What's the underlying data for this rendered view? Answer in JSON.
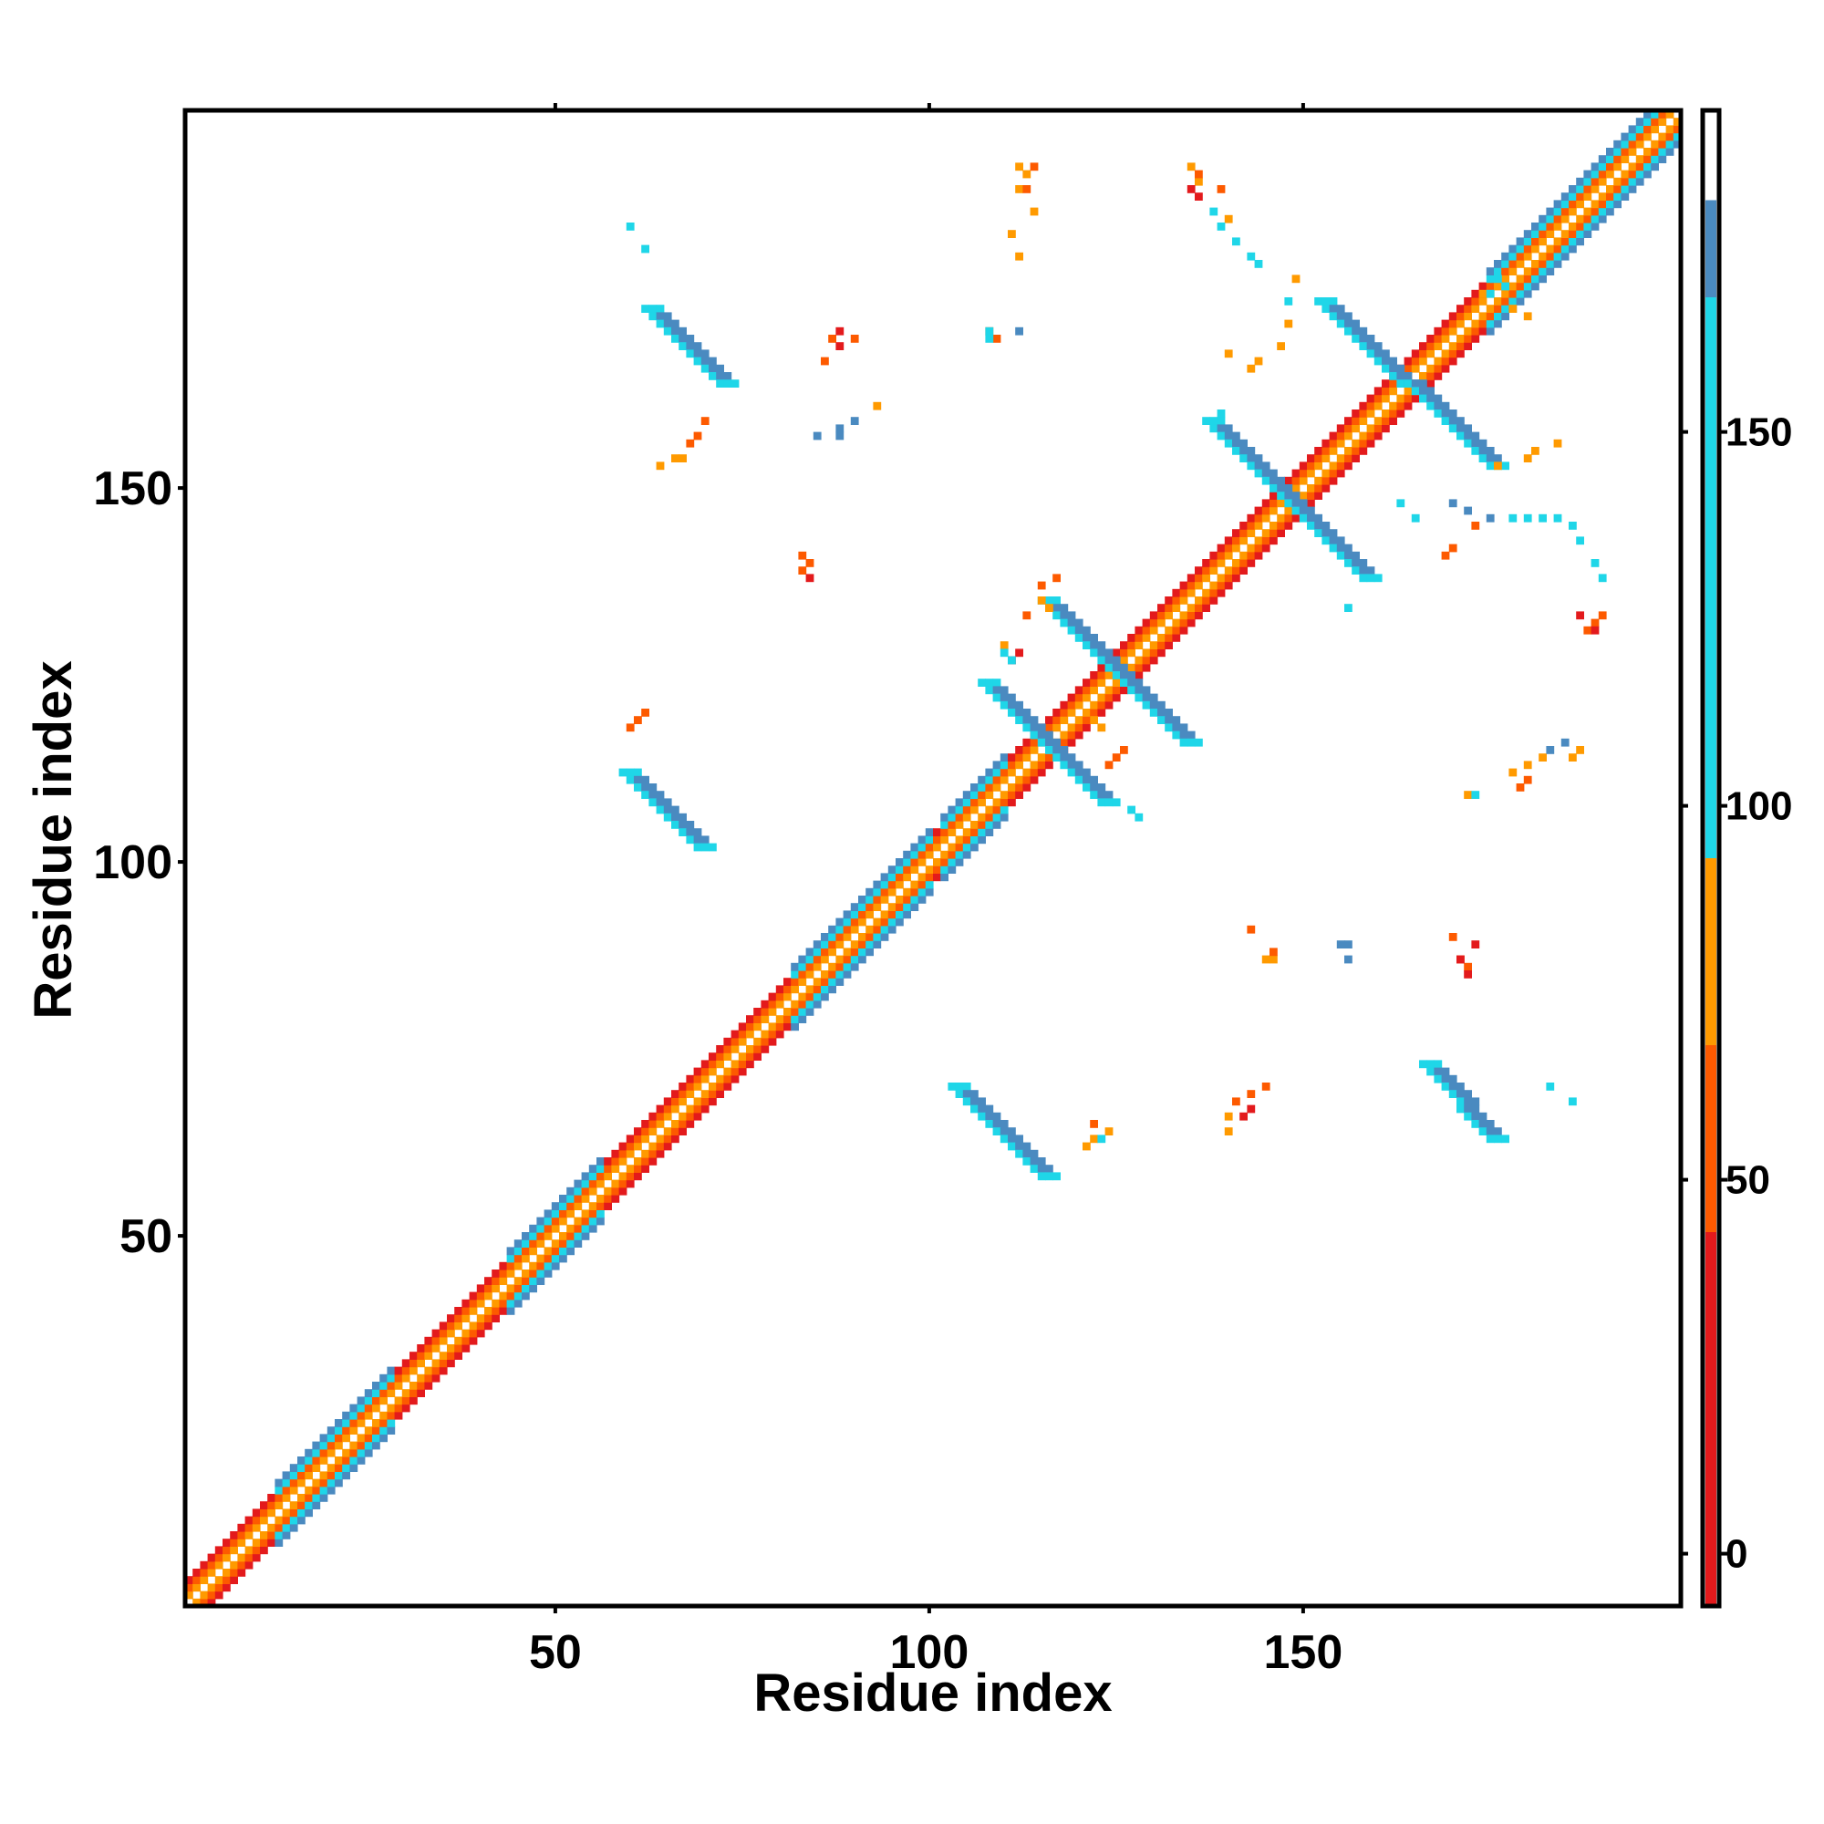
{
  "chart_data": {
    "type": "heatmap",
    "title": "",
    "xlabel": "Residue index",
    "ylabel": "Residue index",
    "xlim": [
      1,
      200
    ],
    "ylim": [
      1,
      200
    ],
    "x_ticks": [
      50,
      100,
      150
    ],
    "y_ticks": [
      50,
      100,
      150
    ],
    "grid": false,
    "colorbar": {
      "range": [
        -7,
        193
      ],
      "ticks": [
        0,
        50,
        100,
        150
      ],
      "bands": [
        {
          "from": -7,
          "to": 43,
          "color": "#e31a1c"
        },
        {
          "from": 43,
          "to": 68,
          "color": "#fd5a00"
        },
        {
          "from": 68,
          "to": 93,
          "color": "#ff9a00"
        },
        {
          "from": 93,
          "to": 168,
          "color": "#1fd6e8"
        },
        {
          "from": 168,
          "to": 181,
          "color": "#4a8ac0"
        },
        {
          "from": 181,
          "to": 193,
          "color": "#ffffff"
        }
      ]
    },
    "diagonal": {
      "from": 1,
      "to": 200,
      "width": 4,
      "colors": [
        "#ffffff",
        "#ff9a00",
        "#fd5a00",
        "#e31a1c"
      ],
      "helix_segments": [
        [
          13,
          28
        ],
        [
          44,
          56
        ],
        [
          82,
          100
        ],
        [
          102,
          110
        ],
        [
          175,
          200
        ]
      ]
    },
    "features": [
      {
        "kind": "antiparallel_strip",
        "x": [
          60,
          70
        ],
        "y": [
          112,
          102
        ],
        "color": "#4a8ac0",
        "edge_color": "#1fd6e8",
        "width": 3
      },
      {
        "kind": "antiparallel_strip",
        "x": [
          63,
          73
        ],
        "y": [
          174,
          164
        ],
        "color": "#4a8ac0",
        "edge_color": "#1fd6e8",
        "width": 3
      },
      {
        "kind": "antiparallel_strip",
        "x": [
          104,
          116
        ],
        "y": [
          70,
          58
        ],
        "color": "#4a8ac0",
        "edge_color": "#1fd6e8",
        "width": 3
      },
      {
        "kind": "antiparallel_strip",
        "x": [
          167,
          176
        ],
        "y": [
          73,
          63
        ],
        "color": "#4a8ac0",
        "edge_color": "#1fd6e8",
        "width": 3
      },
      {
        "kind": "antiparallel_strip",
        "x": [
          108,
          124
        ],
        "y": [
          124,
          108
        ],
        "color": "#4a8ac0",
        "edge_color": "#1fd6e8",
        "width": 3
      },
      {
        "kind": "antiparallel_strip",
        "x": [
          116,
          135
        ],
        "y": [
          135,
          116
        ],
        "color": "#4a8ac0",
        "edge_color": "#1fd6e8",
        "width": 3
      },
      {
        "kind": "antiparallel_strip",
        "x": [
          138,
          159
        ],
        "y": [
          159,
          138
        ],
        "color": "#4a8ac0",
        "edge_color": "#1fd6e8",
        "width": 3
      },
      {
        "kind": "antiparallel_strip",
        "x": [
          153,
          176
        ],
        "y": [
          175,
          153
        ],
        "color": "#4a8ac0",
        "edge_color": "#1fd6e8",
        "width": 3
      },
      {
        "kind": "scatter",
        "color": "#ff9a00",
        "cells": [
          [
            112,
            193
          ],
          [
            113,
            192
          ],
          [
            112,
            190
          ],
          [
            114,
            187
          ],
          [
            111,
            184
          ],
          [
            112,
            181
          ],
          [
            135,
            193
          ],
          [
            136,
            191
          ],
          [
            140,
            186
          ],
          [
            149,
            178
          ],
          [
            148,
            172
          ],
          [
            147,
            169
          ],
          [
            140,
            168
          ],
          [
            143,
            166
          ],
          [
            144,
            167
          ],
          [
            66,
            154
          ],
          [
            67,
            154
          ],
          [
            64,
            153
          ],
          [
            115,
            135
          ],
          [
            116,
            134
          ],
          [
            110,
            129
          ],
          [
            122,
            119
          ],
          [
            123,
            118
          ],
          [
            181,
            155
          ],
          [
            184,
            156
          ],
          [
            180,
            154
          ],
          [
            176,
            153
          ],
          [
            146,
            87
          ],
          [
            145,
            87
          ],
          [
            140,
            64
          ],
          [
            140,
            66
          ],
          [
            178,
            112
          ],
          [
            180,
            113
          ],
          [
            182,
            114
          ],
          [
            186,
            114
          ],
          [
            187,
            115
          ],
          [
            172,
            109
          ],
          [
            122,
            63
          ],
          [
            124,
            64
          ],
          [
            121,
            62
          ],
          [
            93,
            161
          ],
          [
            178,
            174
          ],
          [
            180,
            173
          ],
          [
            174,
            176
          ]
        ]
      },
      {
        "kind": "scatter",
        "color": "#fd5a00",
        "cells": [
          [
            113,
            190
          ],
          [
            114,
            193
          ],
          [
            136,
            192
          ],
          [
            139,
            190
          ],
          [
            68,
            156
          ],
          [
            69,
            157
          ],
          [
            70,
            159
          ],
          [
            87,
            170
          ],
          [
            90,
            170
          ],
          [
            86,
            167
          ],
          [
            83,
            141
          ],
          [
            84,
            140
          ],
          [
            83,
            139
          ],
          [
            115,
            137
          ],
          [
            117,
            138
          ],
          [
            113,
            133
          ],
          [
            124,
            113
          ],
          [
            125,
            114
          ],
          [
            126,
            115
          ],
          [
            170,
            142
          ],
          [
            169,
            141
          ],
          [
            173,
            145
          ],
          [
            189,
            132
          ],
          [
            190,
            133
          ],
          [
            188,
            131
          ],
          [
            180,
            111
          ],
          [
            179,
            110
          ],
          [
            172,
            86
          ],
          [
            171,
            87
          ],
          [
            170,
            90
          ],
          [
            146,
            88
          ],
          [
            143,
            91
          ],
          [
            141,
            68
          ],
          [
            143,
            69
          ],
          [
            145,
            70
          ],
          [
            60,
            118
          ],
          [
            61,
            119
          ],
          [
            62,
            120
          ],
          [
            122,
            65
          ],
          [
            109,
            170
          ],
          [
            108,
            171
          ]
        ]
      },
      {
        "kind": "scatter",
        "color": "#e31a1c",
        "cells": [
          [
            135,
            190
          ],
          [
            136,
            189
          ],
          [
            88,
            169
          ],
          [
            88,
            171
          ],
          [
            84,
            138
          ],
          [
            172,
            85
          ],
          [
            173,
            89
          ],
          [
            171,
            87
          ],
          [
            143,
            67
          ],
          [
            142,
            66
          ],
          [
            187,
            133
          ],
          [
            189,
            131
          ],
          [
            112,
            128
          ],
          [
            111,
            127
          ]
        ]
      },
      {
        "kind": "scatter",
        "color": "#1fd6e8",
        "cells": [
          [
            60,
            185
          ],
          [
            62,
            182
          ],
          [
            138,
            187
          ],
          [
            141,
            183
          ],
          [
            143,
            181
          ],
          [
            144,
            180
          ],
          [
            139,
            185
          ],
          [
            148,
            175
          ],
          [
            108,
            171
          ],
          [
            108,
            170
          ],
          [
            178,
            146
          ],
          [
            180,
            146
          ],
          [
            182,
            146
          ],
          [
            184,
            146
          ],
          [
            186,
            145
          ],
          [
            187,
            143
          ],
          [
            189,
            140
          ],
          [
            190,
            138
          ],
          [
            165,
            146
          ],
          [
            163,
            148
          ],
          [
            183,
            70
          ],
          [
            186,
            68
          ],
          [
            111,
            127
          ],
          [
            110,
            128
          ],
          [
            128,
            106
          ],
          [
            127,
            107
          ],
          [
            156,
            134
          ],
          [
            123,
            63
          ],
          [
            173,
            109
          ],
          [
            139,
            160
          ],
          [
            175,
            176
          ],
          [
            176,
            178
          ],
          [
            177,
            177
          ]
        ]
      },
      {
        "kind": "scatter",
        "color": "#4a8ac0",
        "cells": [
          [
            90,
            159
          ],
          [
            88,
            157
          ],
          [
            85,
            157
          ],
          [
            88,
            158
          ],
          [
            170,
            148
          ],
          [
            172,
            147
          ],
          [
            175,
            146
          ],
          [
            156,
            89
          ],
          [
            155,
            89
          ],
          [
            156,
            87
          ],
          [
            183,
            115
          ],
          [
            185,
            116
          ],
          [
            112,
            171
          ]
        ]
      }
    ]
  }
}
